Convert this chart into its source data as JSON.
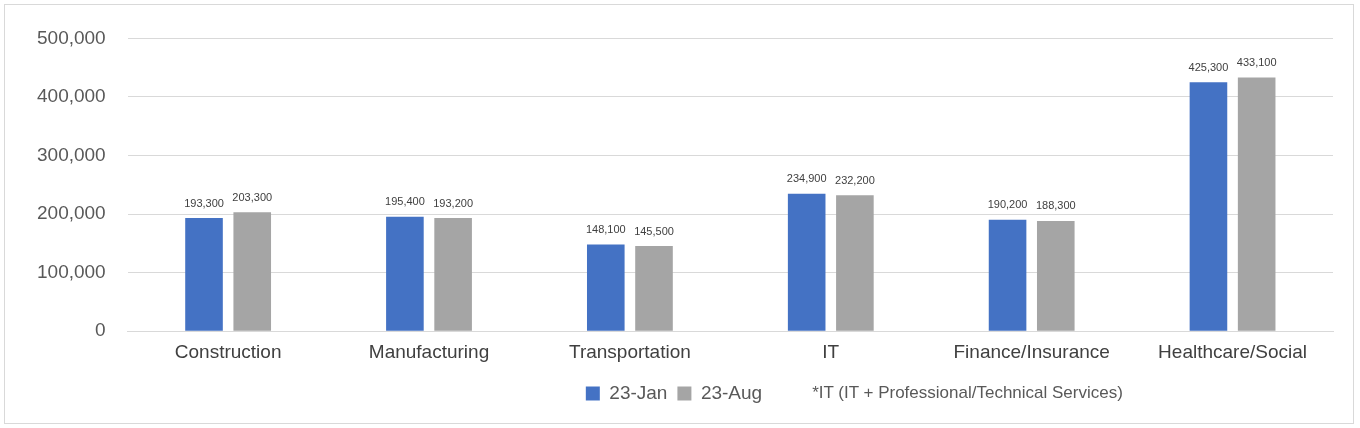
{
  "chart_data": {
    "type": "bar",
    "categories": [
      "Construction",
      "Manufacturing",
      "Transportation",
      "IT",
      "Finance/Insurance",
      "Healthcare/Social"
    ],
    "series": [
      {
        "name": "23-Jan",
        "color": "#4472c4",
        "values": [
          193300,
          195400,
          148100,
          234900,
          190200,
          425300
        ],
        "value_labels": [
          "193,300",
          "195,400",
          "148,100",
          "234,900",
          "190,200",
          "425,300"
        ]
      },
      {
        "name": "23-Aug",
        "color": "#a5a5a5",
        "values": [
          203300,
          193200,
          145500,
          232200,
          188300,
          433100
        ],
        "value_labels": [
          "203,300",
          "193,200",
          "145,500",
          "232,200",
          "188,300",
          "433,100"
        ]
      }
    ],
    "ylim": [
      0,
      500000
    ],
    "yticks": [
      0,
      {
        "value": 100000,
        "label": "100,000"
      },
      {
        "value": 200000,
        "label": "200,000"
      },
      {
        "value": 300000,
        "label": "300,000"
      },
      {
        "value": 400000,
        "label": "400,000"
      },
      {
        "value": 500000,
        "label": "500,000"
      }
    ],
    "grid": "y",
    "legend": "bottom",
    "annotations": [
      "*IT (IT + Professional/Technical Services)"
    ]
  }
}
